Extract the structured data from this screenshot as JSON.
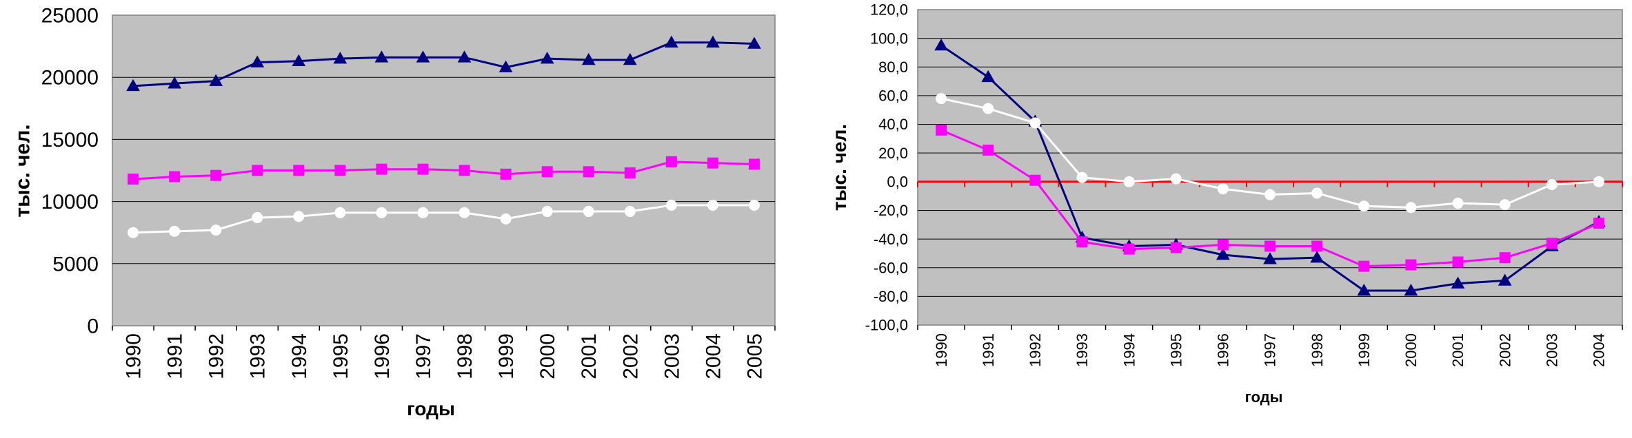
{
  "chart_data": [
    {
      "type": "line",
      "categories": [
        "1990",
        "1991",
        "1992",
        "1993",
        "1994",
        "1995",
        "1996",
        "1997",
        "1998",
        "1999",
        "2000",
        "2001",
        "2002",
        "2003",
        "2004",
        "2005"
      ],
      "series": [
        {
          "values": [
            19300,
            19500,
            19700,
            21200,
            21300,
            21500,
            21600,
            21600,
            21600,
            20800,
            21500,
            21400,
            21400,
            22800,
            22800,
            22700
          ],
          "color": "#000080",
          "marker": "triangle"
        },
        {
          "values": [
            11800,
            12000,
            12100,
            12500,
            12500,
            12500,
            12600,
            12600,
            12500,
            12200,
            12400,
            12400,
            12300,
            13200,
            13100,
            13000
          ],
          "color": "#ff00ff",
          "marker": "square"
        },
        {
          "values": [
            7500,
            7600,
            7700,
            8700,
            8800,
            9100,
            9100,
            9100,
            9100,
            8600,
            9200,
            9200,
            9200,
            9700,
            9700,
            9700
          ],
          "color": "#ffffff",
          "marker": "circle"
        }
      ],
      "ylabel": "тыс. чел.",
      "xlabel": "годы",
      "ylim": [
        0,
        25000
      ],
      "yticks": [
        "0",
        "5000",
        "10000",
        "15000",
        "20000",
        "25000"
      ],
      "grid": true,
      "plot_bg": "#c0c0c0"
    },
    {
      "type": "line",
      "categories": [
        "1990",
        "1991",
        "1992",
        "1993",
        "1994",
        "1995",
        "1996",
        "1997",
        "1998",
        "1999",
        "2000",
        "2001",
        "2002",
        "2003",
        "2004"
      ],
      "series": [
        {
          "values": [
            95,
            73,
            42,
            -39,
            -45,
            -44,
            -51,
            -54,
            -53,
            -76,
            -76,
            -71,
            -69,
            -45,
            -28
          ],
          "color": "#000080",
          "marker": "triangle"
        },
        {
          "values": [
            36,
            22,
            1,
            -42,
            -47,
            -46,
            -44,
            -45,
            -45,
            -59,
            -58,
            -56,
            -53,
            -43,
            -29
          ],
          "color": "#ff00ff",
          "marker": "square"
        },
        {
          "values": [
            58,
            51,
            41,
            3,
            0,
            2,
            -5,
            -9,
            -8,
            -17,
            -18,
            -15,
            -16,
            -2,
            0
          ],
          "color": "#ffffff",
          "marker": "circle"
        }
      ],
      "ylabel": "тыс. чел.",
      "xlabel": "годы",
      "ylim": [
        -100,
        120
      ],
      "yticks": [
        "-100,0",
        "-80,0",
        "-60,0",
        "-40,0",
        "-20,0",
        "0,0",
        "20,0",
        "40,0",
        "60,0",
        "80,0",
        "100,0",
        "120,0"
      ],
      "zero_line_color": "#ff0000",
      "grid": true,
      "plot_bg": "#c0c0c0"
    }
  ]
}
